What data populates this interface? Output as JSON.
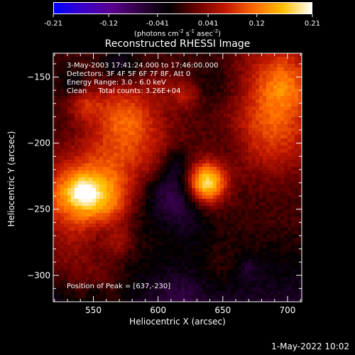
{
  "colorbar": {
    "tick_labels": [
      "-0.21",
      "-0.12",
      "-0.041",
      "0.041",
      "0.12",
      "0.21"
    ],
    "tick_values": [
      -0.21,
      -0.12,
      -0.041,
      0.041,
      0.12,
      0.21
    ],
    "range": [
      -0.21,
      0.21
    ],
    "units_text": "(photons cm",
    "units_sup1": "-2",
    "units_mid": " s",
    "units_sup2": "-1",
    "units_mid2": " asec",
    "units_sup3": "-2",
    "units_end": ")",
    "stops": [
      "#0000ff",
      "#3a00c8",
      "#5a0090",
      "#300040",
      "#000000",
      "#6a0000",
      "#c21800",
      "#ff6a00",
      "#ffc000",
      "#ffffff"
    ]
  },
  "chart_data": {
    "type": "heatmap",
    "title": "Reconstructed RHESSI Image",
    "xlabel": "Heliocentric X (arcsec)",
    "ylabel": "Heliocentric Y (arcsec)",
    "xlim": [
      519,
      711
    ],
    "ylim": [
      -320,
      -132
    ],
    "x_ticks": [
      550,
      600,
      650,
      700
    ],
    "y_ticks": [
      -150,
      -200,
      -250,
      -300
    ],
    "x_tick_labels": [
      "550",
      "600",
      "650",
      "700"
    ],
    "y_tick_labels": [
      "−150",
      "−200",
      "−250",
      "−300"
    ],
    "info_lines": [
      "3-May-2003 17:41:24.000 to 17:46:00.000",
      "Detectors: 3F 4F 5F 6F 7F 8F, Att 0",
      "Energy Range: 3.0 - 6.0 keV",
      "Clean     Total counts: 3.26E+04"
    ],
    "peak_text": "Position of Peak = [637,-230]",
    "peak": {
      "x": 637,
      "y": -230,
      "value": 0.21
    },
    "secondary_sources": [
      {
        "x": 547,
        "y": -243,
        "value": 0.15
      },
      {
        "x": 583,
        "y": -195,
        "value": 0.08
      },
      {
        "x": 688,
        "y": -190,
        "value": 0.09
      },
      {
        "x": 695,
        "y": -145,
        "value": 0.07
      }
    ]
  },
  "footer": {
    "timestamp": "1-May-2022 10:02"
  }
}
